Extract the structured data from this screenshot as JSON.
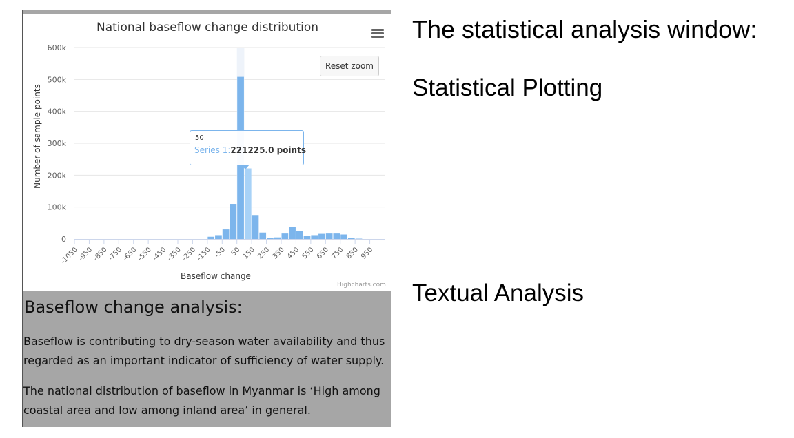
{
  "slide": {
    "heading": "The statistical analysis window:",
    "plotting_label": "Statistical Plotting",
    "textual_label": "Textual Analysis"
  },
  "chart": {
    "reset_zoom_label": "Reset zoom",
    "credits": "Highcharts.com",
    "tooltip": {
      "x": "50",
      "series": "Series 1:",
      "value": "221225.0 points"
    }
  },
  "chart_data": {
    "type": "bar",
    "title": "National baseflow change distribution",
    "xlabel": "Baseflow change",
    "ylabel": "Number of sample points",
    "ylim": [
      0,
      600000
    ],
    "y_ticks": [
      "0",
      "100k",
      "200k",
      "300k",
      "400k",
      "500k",
      "600k"
    ],
    "x_tick_labels": [
      "-1050",
      "-950",
      "-850",
      "-750",
      "-650",
      "-550",
      "-450",
      "-350",
      "-250",
      "-150",
      "-50",
      "50",
      "150",
      "250",
      "350",
      "450",
      "550",
      "650",
      "750",
      "850",
      "950"
    ],
    "grid": true,
    "legend": "none",
    "colors": {
      "bar": "#7cb5ec",
      "highlight": "#a8d2f7",
      "crosshair": "#eef3fa"
    },
    "highlighted_bin": 50,
    "bins": [
      -1100,
      -1050,
      -1000,
      -950,
      -900,
      -850,
      -800,
      -750,
      -700,
      -650,
      -600,
      -550,
      -500,
      -450,
      -400,
      -350,
      -300,
      -250,
      -200,
      -150,
      -100,
      -50,
      0,
      50,
      100,
      150,
      200,
      250,
      300,
      350,
      400,
      450,
      500,
      550,
      600,
      650,
      700,
      750,
      800,
      850,
      900,
      950
    ],
    "series": [
      {
        "values": [
          0,
          0,
          0,
          0,
          0,
          0,
          0,
          0,
          0,
          0,
          0,
          0,
          0,
          0,
          0,
          0,
          0,
          0,
          7000,
          12000,
          30000,
          110000,
          508000,
          221225,
          75000,
          20000,
          3000,
          5000,
          17000,
          38000,
          25000,
          10000,
          12000,
          16000,
          17000,
          17000,
          14000,
          4000,
          1000,
          0,
          0,
          0
        ]
      }
    ]
  },
  "analysis": {
    "title": "Baseflow change analysis:",
    "paragraph1": "Baseflow is contributing to dry-season water availability and thus regarded as an important indicator of sufficiency of water supply.",
    "paragraph2": "The national distribution of baseflow in Myanmar is ‘High among coastal area and low among inland area’ in general."
  }
}
